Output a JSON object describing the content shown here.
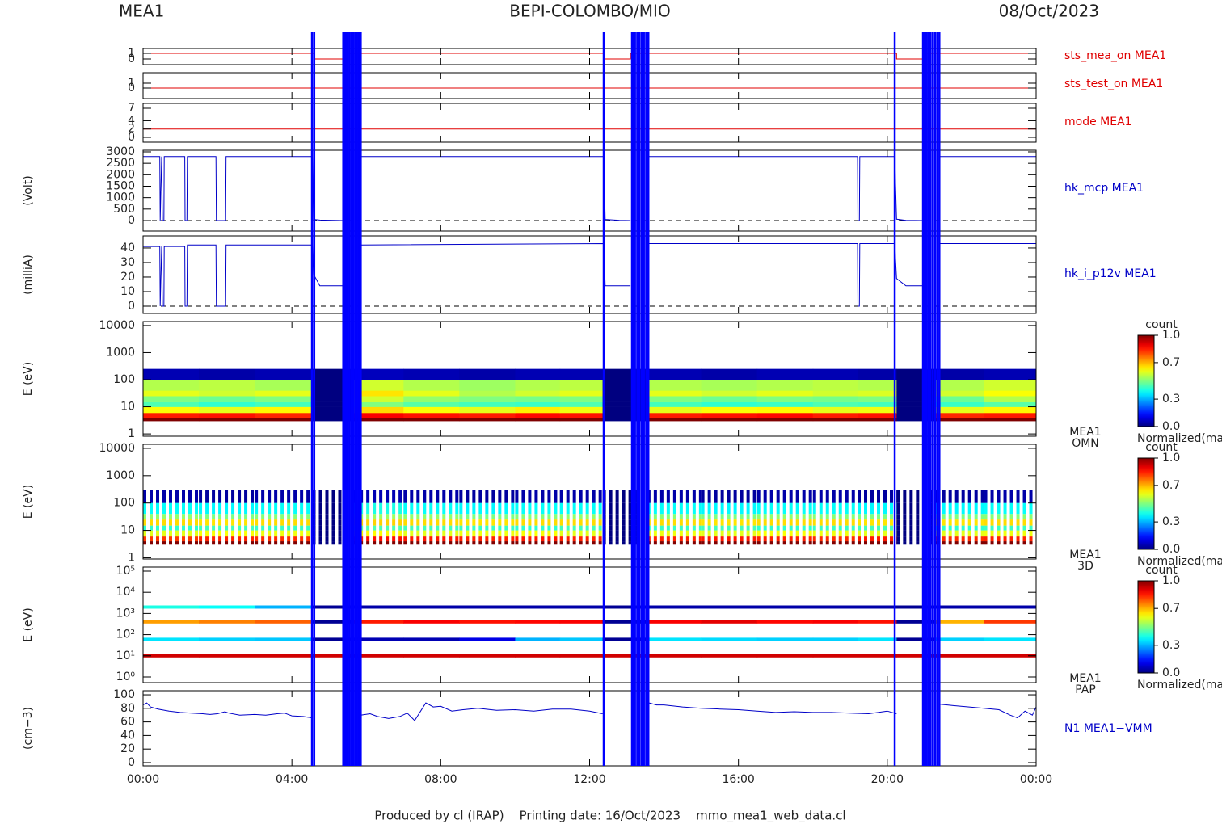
{
  "page": {
    "instrument": "MEA1",
    "title": "BEPI-COLOMBO/MIO",
    "date": "08/Oct/2023",
    "footer": "Produced by cl (IRAP)    Printing date: 16/Oct/2023    mmo_mea1_web_data.cl"
  },
  "time_axis": {
    "xlim": [
      0,
      24
    ],
    "xticks": [
      {
        "value": 0,
        "label": "00:00"
      },
      {
        "value": 4,
        "label": "04:00"
      },
      {
        "value": 8,
        "label": "08:00"
      },
      {
        "value": 12,
        "label": "12:00"
      },
      {
        "value": 16,
        "label": "16:00"
      },
      {
        "value": 20,
        "label": "20:00"
      },
      {
        "value": 24,
        "label": "00:00"
      }
    ]
  },
  "events": {
    "color": "#0000ff",
    "x": [
      4.54,
      4.6,
      5.38,
      5.42,
      5.46,
      5.5,
      5.55,
      5.6,
      5.65,
      5.7,
      5.75,
      5.8,
      5.85,
      12.38,
      13.14,
      13.18,
      13.22,
      13.28,
      13.34,
      13.4,
      13.46,
      13.52,
      13.58,
      20.2,
      20.96,
      21.0,
      21.05,
      21.1,
      21.16,
      21.22,
      21.28,
      21.34,
      21.4
    ]
  },
  "chart_data": [
    {
      "type": "line",
      "ylim": [
        -1,
        1.86
      ],
      "yticks": [
        0,
        1
      ],
      "series": [
        {
          "name": "sts_mea_on MEA1",
          "color": "#e00000",
          "x": [
            0,
            4.6,
            4.6,
            5.4,
            5.4,
            12.4,
            12.4,
            13.1,
            13.1,
            20.25,
            20.25,
            20.96,
            20.96,
            24
          ],
          "values": [
            1,
            1,
            0,
            0,
            1,
            1,
            0,
            0,
            1,
            1,
            0,
            0,
            1,
            1
          ]
        }
      ]
    },
    {
      "type": "line",
      "ylim": [
        -2.17,
        3.17
      ],
      "yticks": [
        0,
        1
      ],
      "series": [
        {
          "name": "sts_test_on MEA1",
          "color": "#e00000",
          "x": [
            0,
            24
          ],
          "values": [
            0,
            0
          ]
        }
      ]
    },
    {
      "type": "line",
      "ylim": [
        -1.17,
        8.17
      ],
      "yticks": [
        0,
        2,
        4,
        7
      ],
      "series": [
        {
          "name": "mode MEA1",
          "color": "#e00000",
          "x": [
            0,
            24
          ],
          "values": [
            2,
            2
          ]
        }
      ]
    },
    {
      "type": "line",
      "ylabel": "(Volt)",
      "ylim": [
        -459,
        3070
      ],
      "yticks": [
        0,
        500,
        1000,
        1500,
        2000,
        2500,
        3000
      ],
      "ref_line": 0,
      "series": [
        {
          "name": "hk_mcp MEA1",
          "color": "#0000c8",
          "x": [
            0,
            0.45,
            0.46,
            0.5,
            0.52,
            0.56,
            0.57,
            1.12,
            1.13,
            1.18,
            1.19,
            1.96,
            1.97,
            2.22,
            2.23,
            4.55,
            4.58,
            4.75,
            5.4,
            5.6,
            5.85,
            12.38,
            12.42,
            12.8,
            13.1,
            13.4,
            13.6,
            19.2,
            19.21,
            19.25,
            19.26,
            20.2,
            20.25,
            20.5,
            20.96,
            21.2,
            21.42,
            24
          ],
          "values": [
            2800,
            2800,
            0,
            2800,
            0,
            0,
            2800,
            2800,
            0,
            0,
            2800,
            2800,
            0,
            0,
            2800,
            2800,
            50,
            20,
            0,
            null,
            2800,
            2800,
            50,
            10,
            0,
            null,
            2800,
            2800,
            0,
            0,
            2800,
            2800,
            60,
            10,
            0,
            null,
            2800,
            2800
          ]
        }
      ]
    },
    {
      "type": "line",
      "ylabel": "(milliA)",
      "ylim": [
        -5,
        48.3
      ],
      "yticks": [
        0,
        10,
        20,
        30,
        40
      ],
      "ref_line": 0,
      "series": [
        {
          "name": "hk_i_p12v MEA1",
          "color": "#0000c8",
          "x": [
            0,
            0.45,
            0.46,
            0.5,
            0.52,
            0.56,
            0.57,
            1.12,
            1.13,
            1.18,
            1.19,
            1.96,
            1.97,
            2.22,
            2.23,
            4.55,
            4.58,
            4.75,
            5.4,
            5.6,
            5.85,
            12.38,
            12.42,
            12.8,
            13.1,
            13.4,
            13.6,
            19.2,
            19.21,
            19.25,
            19.26,
            20.2,
            20.25,
            20.5,
            20.96,
            21.2,
            21.42,
            24
          ],
          "values": [
            41,
            41,
            0,
            41,
            0,
            0,
            41,
            41,
            0,
            0,
            42,
            42,
            0,
            0,
            42,
            42,
            22,
            14,
            14,
            null,
            42,
            43,
            14,
            14,
            14,
            null,
            43,
            43,
            0,
            0,
            43,
            43,
            19,
            14,
            14,
            null,
            43,
            43
          ]
        }
      ]
    },
    {
      "type": "heatmap",
      "ylabel": "E (eV)",
      "log": true,
      "ylim": [
        0.82,
        14000
      ],
      "yticks": [
        1,
        10,
        100,
        1000,
        10000
      ],
      "tag": [
        "MEA1",
        "OMN"
      ],
      "x_edges": [
        0,
        1.5,
        3,
        4.55,
        5.65,
        7,
        8.5,
        10,
        11.2,
        12.35,
        13.55,
        15,
        16.5,
        18,
        19.2,
        20.25,
        21.3,
        22.6,
        24
      ],
      "y_edges": [
        3,
        4,
        6,
        10,
        15,
        25,
        40,
        100,
        250
      ],
      "values": [
        [
          1,
          1,
          1,
          0,
          1,
          1,
          1,
          1,
          1,
          0,
          1,
          1,
          1,
          1,
          1,
          0,
          1,
          1
        ],
        [
          0.85,
          0.86,
          0.84,
          0,
          0.88,
          0.86,
          0.85,
          0.87,
          0.86,
          0,
          0.85,
          0.86,
          0.87,
          0.85,
          0.86,
          0,
          0.84,
          0.85
        ],
        [
          0.62,
          0.6,
          0.63,
          0,
          0.66,
          0.62,
          0.6,
          0.64,
          0.61,
          0,
          0.6,
          0.62,
          0.63,
          0.6,
          0.61,
          0,
          0.6,
          0.63
        ],
        [
          0.45,
          0.42,
          0.44,
          0,
          0.5,
          0.46,
          0.44,
          0.43,
          0.45,
          0,
          0.44,
          0.42,
          0.43,
          0.45,
          0.44,
          0,
          0.43,
          0.46
        ],
        [
          0.5,
          0.48,
          0.5,
          0,
          0.58,
          0.52,
          0.5,
          0.49,
          0.5,
          0,
          0.5,
          0.48,
          0.5,
          0.49,
          0.5,
          0,
          0.48,
          0.55
        ],
        [
          0.6,
          0.58,
          0.6,
          0,
          0.65,
          0.6,
          0.55,
          0.58,
          0.6,
          0,
          0.6,
          0.58,
          0.6,
          0.58,
          0.59,
          0,
          0.58,
          0.62
        ],
        [
          0.55,
          0.56,
          0.54,
          0,
          0.58,
          0.55,
          0.53,
          0.55,
          0.56,
          0,
          0.55,
          0.54,
          0.55,
          0.56,
          0.55,
          0,
          0.55,
          0.58
        ],
        [
          0.05,
          0.04,
          0.05,
          0,
          0.06,
          0.05,
          0.04,
          0.05,
          0.05,
          0,
          0.05,
          0.04,
          0.05,
          0.05,
          0.04,
          0,
          0.04,
          0.05
        ]
      ],
      "colorbar": {
        "title": "count",
        "label": "Normalized(max)",
        "lim": [
          0,
          1
        ],
        "ticks": [
          {
            "value": 0,
            "label": "0.0"
          },
          0.3,
          0.7,
          {
            "value": 1,
            "label": "1.0"
          }
        ]
      }
    },
    {
      "type": "heatmap",
      "stripes": true,
      "ylabel": "E (eV)",
      "log": true,
      "ylim": [
        0.9,
        14000
      ],
      "yticks": [
        1,
        10,
        100,
        1000,
        10000
      ],
      "tag": [
        "MEA1",
        "3D"
      ],
      "x_edges": [
        0,
        1.5,
        3,
        4.55,
        5.65,
        7,
        8.5,
        10,
        11.2,
        12.35,
        13.55,
        15,
        16.5,
        18,
        19.2,
        20.25,
        21.3,
        22.6,
        24
      ],
      "y_edges": [
        3,
        4,
        6,
        10,
        15,
        25,
        40,
        100,
        300
      ],
      "values": [
        [
          1,
          1,
          1,
          0,
          1,
          1,
          1,
          1,
          1,
          0,
          1,
          1,
          1,
          1,
          1,
          0,
          1,
          1
        ],
        [
          0.82,
          0.84,
          0.83,
          0,
          0.86,
          0.85,
          0.84,
          0.85,
          0.84,
          0,
          0.84,
          0.85,
          0.84,
          0.83,
          0.85,
          0,
          0.83,
          0.84
        ],
        [
          0.6,
          0.62,
          0.61,
          0,
          0.63,
          0.6,
          0.61,
          0.62,
          0.6,
          0,
          0.61,
          0.6,
          0.62,
          0.61,
          0.6,
          0,
          0.6,
          0.61
        ],
        [
          0.42,
          0.44,
          0.43,
          0,
          0.45,
          0.44,
          0.43,
          0.42,
          0.44,
          0,
          0.43,
          0.44,
          0.42,
          0.43,
          0.44,
          0,
          0.42,
          0.43
        ],
        [
          0.66,
          0.65,
          0.66,
          0,
          0.67,
          0.66,
          0.65,
          0.66,
          0.66,
          0,
          0.66,
          0.65,
          0.66,
          0.66,
          0.65,
          0,
          0.65,
          0.66
        ],
        [
          0.52,
          0.5,
          0.51,
          0,
          0.53,
          0.52,
          0.5,
          0.51,
          0.52,
          0,
          0.51,
          0.5,
          0.52,
          0.51,
          0.5,
          0,
          0.5,
          0.51
        ],
        [
          0.38,
          0.37,
          0.38,
          0,
          0.4,
          0.38,
          0.37,
          0.38,
          0.38,
          0,
          0.38,
          0.37,
          0.38,
          0.38,
          0.37,
          0,
          0.37,
          0.38
        ],
        [
          0.04,
          0.03,
          0.04,
          0,
          0.05,
          0.04,
          0.03,
          0.04,
          0.04,
          0,
          0.04,
          0.03,
          0.04,
          0.04,
          0.03,
          0,
          0.03,
          0.04
        ]
      ],
      "colorbar": {
        "title": "count",
        "label": "Normalized(max)",
        "lim": [
          0,
          1
        ],
        "ticks": [
          {
            "value": 0,
            "label": "0.0"
          },
          0.3,
          0.7,
          {
            "value": 1,
            "label": "1.0"
          }
        ]
      }
    },
    {
      "type": "bands",
      "ylabel": "E (eV)",
      "log": true,
      "ylim": [
        0.54,
        155000
      ],
      "yticks": [
        {
          "value": 1,
          "label": "10⁰"
        },
        {
          "value": 10,
          "label": "10¹"
        },
        {
          "value": 100,
          "label": "10²"
        },
        {
          "value": 1000,
          "label": "10³"
        },
        {
          "value": 10000,
          "label": "10⁴"
        },
        {
          "value": 100000,
          "label": "10⁵"
        }
      ],
      "tag": [
        "MEA1",
        "PAP"
      ],
      "x_edges": [
        0,
        1.5,
        3,
        4.55,
        5.65,
        7,
        8.5,
        10,
        11.2,
        12.35,
        13.55,
        15,
        16.5,
        18,
        19.2,
        20.25,
        21.3,
        22.6,
        24
      ],
      "energies": [
        10,
        60,
        400,
        2000
      ],
      "values": [
        [
          0.92,
          0.92,
          0.92,
          0.92,
          0.92,
          0.92,
          0.92,
          0.92,
          0.92,
          0.92,
          0.92,
          0.92,
          0.92,
          0.92,
          0.92,
          0.92,
          0.92,
          0.92
        ],
        [
          0.35,
          0.33,
          0.32,
          0.02,
          0.05,
          0.05,
          0.1,
          0.3,
          0.32,
          0.02,
          0.35,
          0.34,
          0.33,
          0.33,
          0.35,
          0.02,
          0.33,
          0.35
        ],
        [
          0.72,
          0.75,
          0.78,
          0.02,
          0.85,
          0.88,
          0.86,
          0.87,
          0.88,
          0.02,
          0.88,
          0.9,
          0.87,
          0.88,
          0.86,
          0.02,
          0.7,
          0.82
        ],
        [
          0.4,
          0.38,
          0.3,
          0.02,
          0.04,
          0.04,
          0.04,
          0.04,
          0.04,
          0.02,
          0.04,
          0.04,
          0.04,
          0.04,
          0.04,
          0.02,
          0.04,
          0.04
        ]
      ],
      "colorbar": {
        "title": "count",
        "label": "Normalized(max)",
        "lim": [
          0,
          1
        ],
        "ticks": [
          {
            "value": 0,
            "label": "0.0"
          },
          0.3,
          0.7,
          {
            "value": 1,
            "label": "1.0"
          }
        ]
      }
    },
    {
      "type": "line",
      "ylabel": "(cm−3)",
      "ylim": [
        -4.8,
        106
      ],
      "yticks": [
        0,
        20,
        40,
        60,
        80,
        100
      ],
      "series": [
        {
          "name": "N1 MEA1−VMM",
          "color": "#0000c8",
          "x": [
            0,
            0.1,
            0.2,
            0.4,
            0.7,
            1,
            1.3,
            1.6,
            1.8,
            2,
            2.2,
            2.3,
            2.6,
            3,
            3.3,
            3.6,
            3.8,
            4,
            4.3,
            4.55,
            4.6,
            5.85,
            6.1,
            6.3,
            6.6,
            6.9,
            7.1,
            7.3,
            7.6,
            7.8,
            8,
            8.3,
            8.6,
            9,
            9.5,
            10,
            10.5,
            11,
            11.5,
            12,
            12.35,
            12.4,
            13.6,
            13.8,
            14,
            14.5,
            15,
            15.5,
            16,
            16.5,
            17,
            17.5,
            18,
            18.5,
            19,
            19.5,
            20,
            20.25,
            20.3,
            21.42,
            21.8,
            22.2,
            22.6,
            23,
            23.3,
            23.5,
            23.7,
            23.9,
            24
          ],
          "values": [
            85,
            88,
            82,
            79,
            76,
            74,
            73,
            72,
            71,
            72,
            75,
            73,
            70,
            71,
            70,
            72,
            73,
            69,
            68,
            66,
            null,
            70,
            72,
            68,
            65,
            68,
            73,
            62,
            88,
            82,
            83,
            76,
            78,
            80,
            77,
            78,
            76,
            79,
            79,
            76,
            72,
            null,
            88,
            85,
            85,
            82,
            80,
            79,
            78,
            76,
            74,
            75,
            74,
            74,
            73,
            72,
            76,
            72,
            null,
            86,
            84,
            82,
            80,
            78,
            70,
            66,
            76,
            70,
            82
          ]
        }
      ]
    }
  ]
}
